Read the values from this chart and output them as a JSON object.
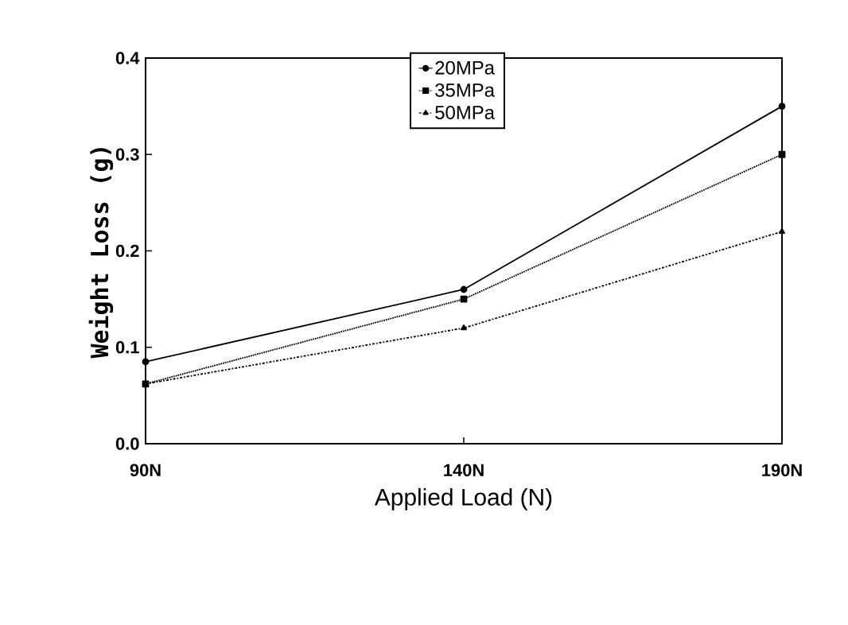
{
  "chart_data": {
    "type": "line",
    "xlabel": "Applied Load (N)",
    "ylabel": "Weight Loss (g)",
    "categories": [
      "90N",
      "140N",
      "190N"
    ],
    "series": [
      {
        "name": "20MPa",
        "color": "#000000",
        "values": [
          0.085,
          0.16,
          0.35
        ],
        "marker": "circle",
        "line_style": "solid"
      },
      {
        "name": "35MPa",
        "color": "#000000",
        "values": [
          0.062,
          0.15,
          0.3
        ],
        "marker": "square",
        "line_style": "dotted"
      },
      {
        "name": "50MPa",
        "color": "#000000",
        "values": [
          0.062,
          0.12,
          0.22
        ],
        "marker": "triangle",
        "line_style": "dashdotted"
      }
    ],
    "ylim": [
      0,
      0.4
    ],
    "yticks": [
      {
        "value": 0,
        "label": "0.0"
      },
      0.1,
      0.2,
      0.3,
      0.4
    ],
    "grid": false,
    "legend": "top"
  }
}
